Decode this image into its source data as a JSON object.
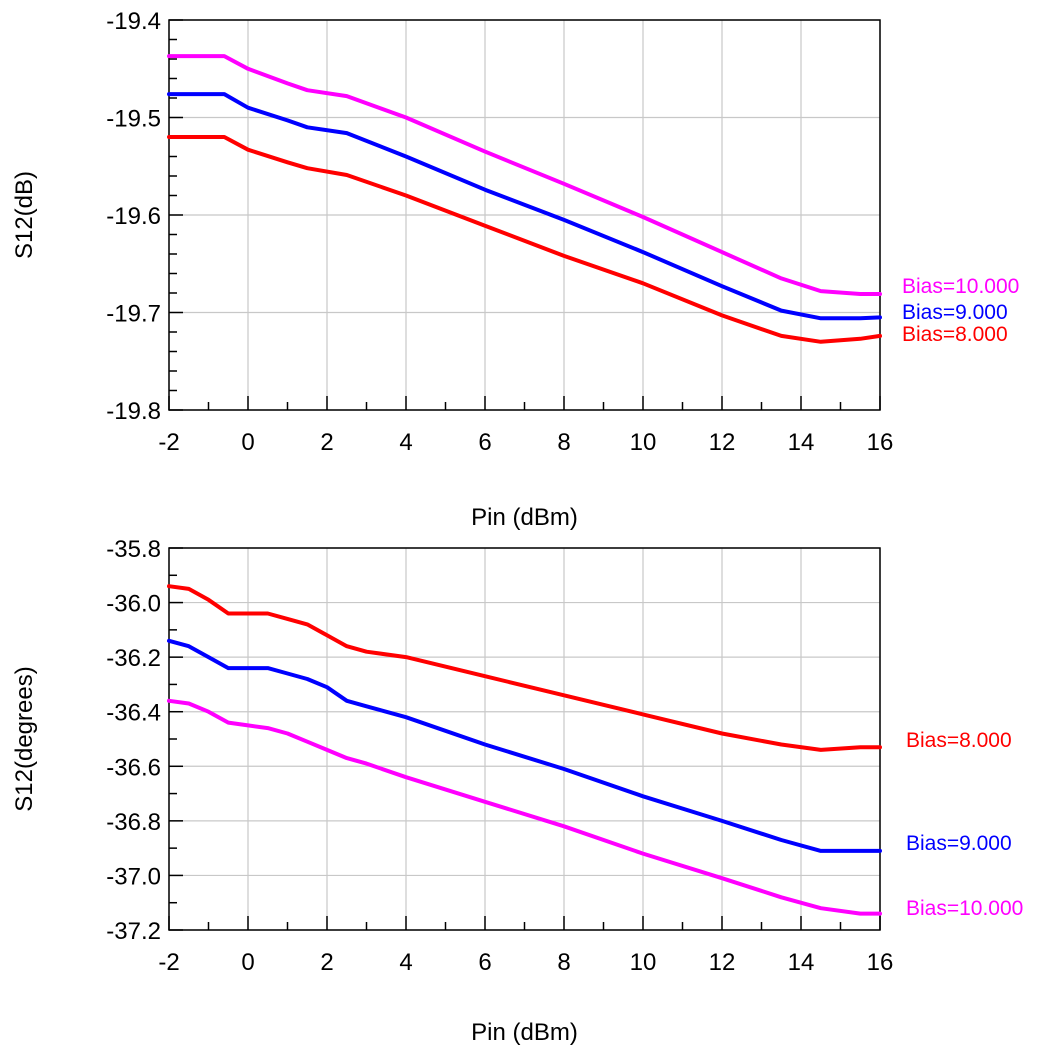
{
  "chart_data": [
    {
      "type": "line",
      "xlabel": "Pin (dBm)",
      "ylabel": "S12(dB)",
      "xlim": [
        -2,
        16
      ],
      "ylim": [
        -19.8,
        -19.4
      ],
      "xticks": [
        -2,
        0,
        2,
        4,
        6,
        8,
        10,
        12,
        14,
        16
      ],
      "yticks": [
        -19.8,
        -19.7,
        -19.6,
        -19.5,
        -19.4
      ],
      "grid": true,
      "x": [
        -2,
        -0.6,
        0,
        1,
        1.5,
        2.5,
        4,
        6,
        8,
        10,
        12,
        13.5,
        14.5,
        15.5,
        16
      ],
      "series": [
        {
          "name": "Bias=10.000",
          "color": "#ff00ff",
          "values": [
            -19.437,
            -19.437,
            -19.45,
            -19.465,
            -19.472,
            -19.478,
            -19.5,
            -19.535,
            -19.568,
            -19.602,
            -19.638,
            -19.665,
            -19.678,
            -19.681,
            -19.681
          ]
        },
        {
          "name": "Bias=9.000",
          "color": "#0000ff",
          "values": [
            -19.476,
            -19.476,
            -19.49,
            -19.503,
            -19.51,
            -19.516,
            -19.54,
            -19.574,
            -19.605,
            -19.638,
            -19.673,
            -19.698,
            -19.706,
            -19.706,
            -19.705
          ]
        },
        {
          "name": "Bias=8.000",
          "color": "#ff0000",
          "values": [
            -19.52,
            -19.52,
            -19.533,
            -19.546,
            -19.552,
            -19.559,
            -19.58,
            -19.611,
            -19.642,
            -19.67,
            -19.703,
            -19.724,
            -19.73,
            -19.727,
            -19.724
          ]
        }
      ]
    },
    {
      "type": "line",
      "xlabel": "Pin (dBm)",
      "ylabel": "S12(degrees)",
      "xlim": [
        -2,
        16
      ],
      "ylim": [
        -37.2,
        -35.8
      ],
      "xticks": [
        -2,
        0,
        2,
        4,
        6,
        8,
        10,
        12,
        14,
        16
      ],
      "yticks": [
        -37.2,
        -37.0,
        -36.8,
        -36.6,
        -36.4,
        -36.2,
        -36.0,
        -35.8
      ],
      "grid": true,
      "x": [
        -2,
        -1.5,
        -1,
        -0.5,
        0,
        0.5,
        1,
        1.5,
        2,
        2.5,
        3,
        4,
        6,
        8,
        10,
        12,
        13.5,
        14.5,
        15.5,
        16
      ],
      "series": [
        {
          "name": "Bias=8.000",
          "color": "#ff0000",
          "values": [
            -35.94,
            -35.95,
            -35.99,
            -36.04,
            -36.04,
            -36.04,
            -36.06,
            -36.08,
            -36.12,
            -36.16,
            -36.18,
            -36.2,
            -36.27,
            -36.34,
            -36.41,
            -36.48,
            -36.52,
            -36.54,
            -36.53,
            -36.53
          ]
        },
        {
          "name": "Bias=9.000",
          "color": "#0000ff",
          "values": [
            -36.14,
            -36.16,
            -36.2,
            -36.24,
            -36.24,
            -36.24,
            -36.26,
            -36.28,
            -36.31,
            -36.36,
            -36.38,
            -36.42,
            -36.52,
            -36.61,
            -36.71,
            -36.8,
            -36.87,
            -36.91,
            -36.91,
            -36.91
          ]
        },
        {
          "name": "Bias=10.000",
          "color": "#ff00ff",
          "values": [
            -36.36,
            -36.37,
            -36.4,
            -36.44,
            -36.45,
            -36.46,
            -36.48,
            -36.51,
            -36.54,
            -36.57,
            -36.59,
            -36.64,
            -36.73,
            -36.82,
            -36.92,
            -37.01,
            -37.08,
            -37.12,
            -37.14,
            -37.14
          ]
        }
      ]
    }
  ]
}
